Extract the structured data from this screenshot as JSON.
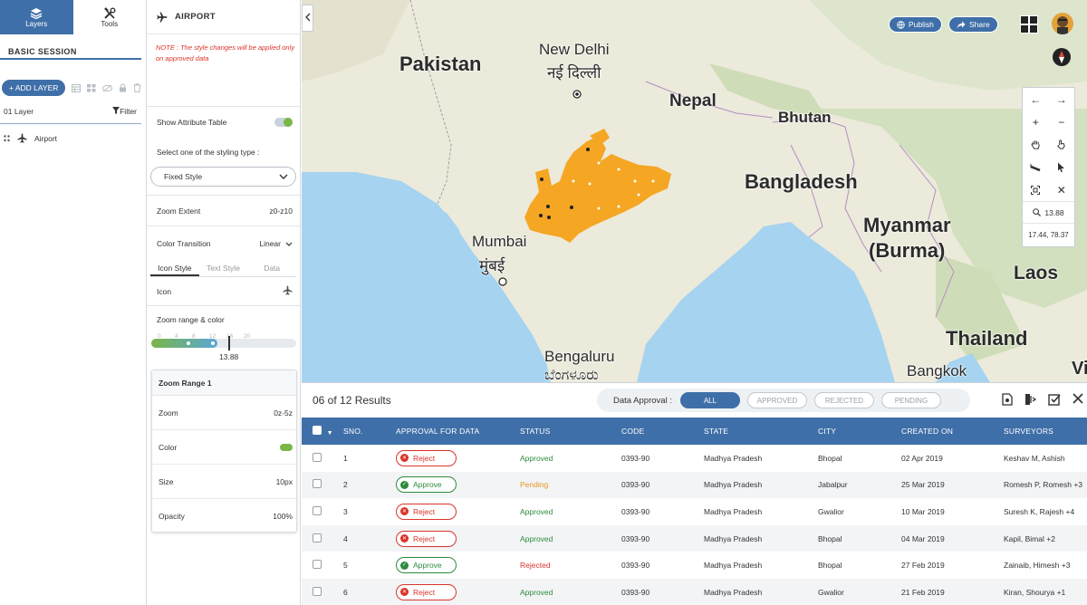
{
  "sidebar": {
    "tabs": [
      {
        "label": "Layers",
        "icon": "layers-icon",
        "active": true
      },
      {
        "label": "Tools",
        "icon": "tools-icon",
        "active": false
      }
    ],
    "session_title": "BASIC SESSION",
    "add_layer_label": "+ ADD LAYER",
    "layer_count": "01 Layer",
    "filter_label": "Filter",
    "layers": [
      {
        "name": "Airport",
        "icon": "airplane-icon"
      }
    ]
  },
  "style_panel": {
    "title": "AIRPORT",
    "note": "NOTE : The style changes will be applied only on approved data",
    "show_attribute_table_label": "Show Attribute Table",
    "show_attribute_table": true,
    "styling_type_label": "Select one of the styling type :",
    "styling_type_value": "Fixed Style",
    "zoom_extent_label": "Zoom Extent",
    "zoom_extent_value": "z0-z10",
    "color_transition_label": "Color Transition",
    "color_transition_value": "Linear",
    "subtabs": [
      "Icon Style",
      "Text Style",
      "Data"
    ],
    "icon_label": "Icon",
    "zoom_range_color_label": "Zoom range & color",
    "slider_ticks": [
      "0",
      "4",
      "8",
      "12",
      "16",
      "20"
    ],
    "slider_value": "13.88",
    "zoom_range_title": "Zoom Range 1",
    "zoom_label": "Zoom",
    "zoom_value": "0z-5z",
    "color_label": "Color",
    "size_label": "Size",
    "size_value": "10px",
    "opacity_label": "Opacity",
    "opacity_value": "100%",
    "accent_color": "#7ab648"
  },
  "map": {
    "publish_label": "Publish",
    "share_label": "Share",
    "zoom_level": "13.88",
    "coordinates": "17.44, 78.37",
    "labels": {
      "pakistan": "Pakistan",
      "new_delhi": "New Delhi",
      "new_delhi_hi": "नई दिल्ली",
      "nepal": "Nepal",
      "bhutan": "Bhutan",
      "bangladesh": "Bangladesh",
      "myanmar": "Myanmar",
      "burma": "(Burma)",
      "laos": "Laos",
      "thailand": "Thailand",
      "bangkok": "Bangkok",
      "vi": "Vi",
      "mumbai": "Mumbai",
      "mumbai_mr": "मुंबई",
      "bengaluru": "Bengaluru",
      "bengaluru_kn": "ಬೆಂಗಳೂರು"
    },
    "highlight_color": "#f5a623"
  },
  "results": {
    "count_text": "06 of 12 Results",
    "approval_label": "Data Approval :",
    "filters": [
      "ALL",
      "APPROVED",
      "REJECTED",
      "PENDING"
    ],
    "active_filter": "ALL",
    "columns": [
      "SNO.",
      "APPROVAL FOR DATA",
      "STATUS",
      "CODE",
      "STATE",
      "CITY",
      "CREATED ON",
      "SURVEYORS"
    ],
    "rows": [
      {
        "sno": "1",
        "action": "Reject",
        "status": "Approved",
        "code": "0393-90",
        "state": "Madhya Pradesh",
        "city": "Bhopal",
        "created": "02 Apr 2019",
        "surveyors": "Keshav M, Ashish"
      },
      {
        "sno": "2",
        "action": "Approve",
        "status": "Pending",
        "code": "0393-90",
        "state": "Madhya Pradesh",
        "city": "Jabalpur",
        "created": "25 Mar 2019",
        "surveyors": "Romesh P, Romesh +3"
      },
      {
        "sno": "3",
        "action": "Reject",
        "status": "Approved",
        "code": "0393-90",
        "state": "Madhya Pradesh",
        "city": "Gwalior",
        "created": "10 Mar 2019",
        "surveyors": "Suresh K, Rajesh +4"
      },
      {
        "sno": "4",
        "action": "Reject",
        "status": "Approved",
        "code": "0393-90",
        "state": "Madhya Pradesh",
        "city": "Bhopal",
        "created": "04 Mar 2019",
        "surveyors": "Kapil, Bimal +2"
      },
      {
        "sno": "5",
        "action": "Approve",
        "status": "Rejected",
        "code": "0393-90",
        "state": "Madhya Pradesh",
        "city": "Bhopal",
        "created": "27 Feb 2019",
        "surveyors": "Zainaib, Himesh +3"
      },
      {
        "sno": "6",
        "action": "Reject",
        "status": "Approved",
        "code": "0393-90",
        "state": "Madhya Pradesh",
        "city": "Gwalior",
        "created": "21 Feb 2019",
        "surveyors": "Kiran, Shourya +1"
      }
    ]
  }
}
